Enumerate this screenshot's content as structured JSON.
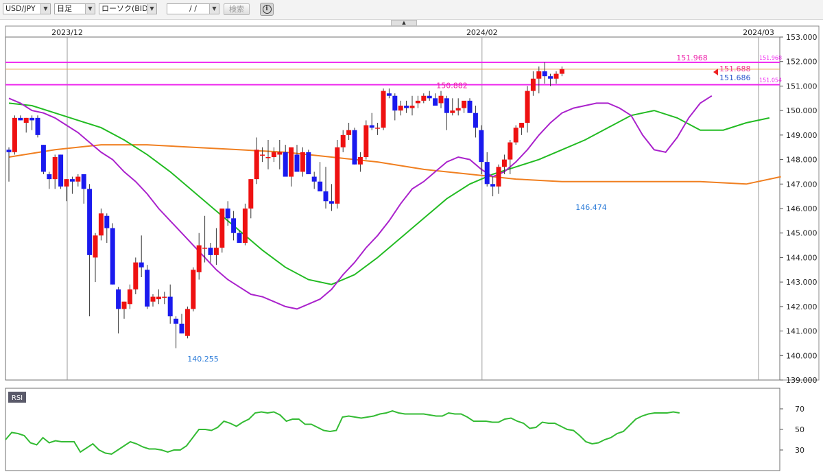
{
  "toolbar": {
    "pair": "USD/JPY",
    "timeframe": "日足",
    "chart_type": "ローソク(BID)",
    "date": "/ /",
    "search_label": "検索",
    "dropdown_glyph": "▼",
    "info_glyph": "i",
    "collapse_glyph": "▲"
  },
  "colors": {
    "bull": "#ee1111",
    "bear": "#1a1aee",
    "ma_short": "#aa22cc",
    "ma_mid": "#22bb22",
    "ma_long": "#f07f20",
    "hline": "#ee22ee",
    "rsi": "#33bb33"
  },
  "chart_data": {
    "type": "candlestick",
    "x_tick_labels": [
      "2023/12",
      "2024/02",
      "2024/03"
    ],
    "x_tick_index": [
      0,
      72,
      120
    ],
    "y_ticks": [
      "153.000",
      "152.000",
      "151.000",
      "150.000",
      "149.000",
      "148.000",
      "147.000",
      "146.000",
      "145.000",
      "144.000",
      "143.000",
      "142.000",
      "141.000",
      "140.000",
      "139.000"
    ],
    "ylim": [
      139.0,
      153.0
    ],
    "grid": false,
    "candles_ohlc": [
      [
        148.4,
        148.5,
        147.1,
        148.3
      ],
      [
        148.3,
        149.8,
        148.2,
        149.7
      ],
      [
        149.7,
        149.8,
        149.6,
        149.6
      ],
      [
        149.5,
        149.7,
        149.1,
        149.7
      ],
      [
        149.7,
        149.8,
        149.2,
        149.6
      ],
      [
        149.7,
        149.8,
        148.9,
        149.0
      ],
      [
        148.6,
        148.6,
        147.4,
        147.5
      ],
      [
        147.4,
        147.5,
        146.8,
        147.2
      ],
      [
        147.2,
        148.2,
        146.8,
        148.1
      ],
      [
        148.2,
        148.2,
        146.8,
        146.9
      ],
      [
        146.9,
        147.2,
        146.3,
        147.2
      ],
      [
        147.2,
        147.3,
        146.6,
        147.1
      ],
      [
        147.1,
        147.4,
        146.9,
        147.3
      ],
      [
        147.4,
        147.4,
        146.2,
        146.8
      ],
      [
        146.8,
        147.0,
        141.6,
        144.1
      ],
      [
        144.0,
        145.0,
        143.0,
        144.9
      ],
      [
        144.9,
        146.0,
        144.7,
        145.8
      ],
      [
        145.7,
        145.8,
        144.6,
        145.2
      ],
      [
        145.2,
        145.4,
        142.9,
        142.9
      ],
      [
        142.7,
        142.8,
        140.9,
        141.9
      ],
      [
        141.9,
        142.2,
        141.5,
        142.2
      ],
      [
        142.1,
        142.9,
        141.9,
        142.7
      ],
      [
        142.7,
        144.0,
        142.5,
        143.8
      ],
      [
        143.8,
        144.9,
        143.2,
        143.6
      ],
      [
        143.5,
        143.7,
        141.9,
        142.0
      ],
      [
        142.2,
        142.5,
        142.0,
        142.4
      ],
      [
        142.3,
        142.7,
        142.1,
        142.4
      ],
      [
        142.4,
        142.6,
        142.1,
        142.4
      ],
      [
        142.4,
        142.9,
        141.3,
        141.6
      ],
      [
        141.5,
        141.6,
        140.3,
        141.3
      ],
      [
        141.3,
        141.7,
        140.9,
        140.9
      ],
      [
        140.8,
        142.0,
        140.7,
        141.9
      ],
      [
        141.9,
        143.6,
        141.8,
        143.5
      ],
      [
        143.4,
        145.0,
        143.1,
        144.5
      ],
      [
        144.4,
        145.7,
        143.8,
        144.4
      ],
      [
        144.4,
        144.6,
        143.8,
        144.1
      ],
      [
        144.1,
        145.2,
        143.7,
        144.4
      ],
      [
        144.4,
        146.0,
        144.2,
        146.0
      ],
      [
        146.0,
        146.3,
        145.3,
        145.6
      ],
      [
        145.6,
        145.9,
        144.7,
        145.0
      ],
      [
        145.0,
        145.1,
        144.6,
        144.6
      ],
      [
        144.6,
        146.2,
        144.5,
        146.0
      ],
      [
        146.0,
        147.2,
        145.6,
        147.2
      ],
      [
        147.2,
        148.9,
        147.0,
        148.4
      ],
      [
        148.2,
        148.5,
        147.9,
        148.2
      ],
      [
        148.1,
        148.8,
        147.6,
        148.1
      ],
      [
        148.1,
        148.5,
        147.9,
        148.3
      ],
      [
        148.2,
        148.8,
        147.6,
        148.3
      ],
      [
        148.3,
        148.6,
        147.4,
        147.3
      ],
      [
        147.3,
        148.4,
        146.9,
        148.5
      ],
      [
        148.2,
        148.6,
        147.7,
        147.5
      ],
      [
        147.5,
        148.5,
        147.3,
        148.3
      ],
      [
        148.3,
        148.4,
        147.5,
        147.4
      ],
      [
        147.3,
        147.5,
        146.8,
        147.1
      ],
      [
        147.1,
        147.9,
        146.9,
        146.7
      ],
      [
        146.7,
        147.7,
        146.0,
        146.3
      ],
      [
        146.3,
        147.0,
        145.9,
        146.2
      ],
      [
        146.2,
        148.8,
        146.0,
        148.5
      ],
      [
        148.5,
        149.2,
        148.3,
        149.0
      ],
      [
        149.0,
        149.5,
        148.8,
        149.2
      ],
      [
        149.2,
        149.3,
        147.8,
        147.8
      ],
      [
        147.8,
        148.3,
        147.5,
        148.1
      ],
      [
        148.1,
        149.6,
        148.0,
        149.4
      ],
      [
        149.4,
        149.9,
        149.2,
        149.3
      ],
      [
        149.3,
        149.5,
        149.0,
        149.3
      ],
      [
        149.3,
        150.9,
        149.2,
        150.8
      ],
      [
        150.7,
        150.9,
        150.5,
        150.6
      ],
      [
        150.6,
        150.7,
        149.6,
        150.0
      ],
      [
        150.0,
        150.4,
        149.8,
        150.2
      ],
      [
        150.2,
        150.4,
        149.9,
        150.1
      ],
      [
        150.1,
        150.6,
        149.8,
        150.2
      ],
      [
        150.3,
        150.6,
        150.1,
        150.4
      ],
      [
        150.4,
        150.7,
        150.3,
        150.6
      ],
      [
        150.6,
        150.8,
        150.4,
        150.5
      ],
      [
        150.5,
        150.7,
        150.2,
        150.2
      ],
      [
        150.3,
        150.8,
        150.1,
        150.6
      ],
      [
        150.5,
        150.6,
        149.2,
        149.9
      ],
      [
        149.9,
        150.5,
        149.8,
        150.0
      ],
      [
        150.0,
        150.5,
        149.8,
        150.1
      ],
      [
        150.1,
        150.3,
        149.9,
        150.4
      ],
      [
        150.4,
        150.5,
        149.9,
        149.9
      ],
      [
        149.9,
        150.2,
        148.9,
        149.3
      ],
      [
        149.2,
        149.4,
        147.4,
        147.9
      ],
      [
        147.9,
        148.3,
        146.9,
        147.0
      ],
      [
        147.0,
        147.3,
        146.5,
        146.9
      ],
      [
        146.9,
        147.8,
        146.6,
        147.7
      ],
      [
        147.7,
        148.2,
        147.4,
        148.0
      ],
      [
        148.0,
        148.8,
        147.4,
        148.7
      ],
      [
        148.7,
        149.4,
        148.6,
        149.3
      ],
      [
        149.3,
        149.5,
        149.0,
        149.5
      ],
      [
        149.5,
        151.0,
        149.1,
        150.8
      ],
      [
        150.8,
        151.6,
        150.6,
        151.3
      ],
      [
        151.3,
        151.8,
        150.7,
        151.6
      ],
      [
        151.6,
        151.97,
        151.1,
        151.4
      ],
      [
        151.4,
        151.5,
        151.0,
        151.3
      ],
      [
        151.3,
        151.6,
        151.1,
        151.5
      ],
      [
        151.5,
        151.8,
        151.4,
        151.69
      ]
    ],
    "ma_short_values": [
      150.5,
      150.3,
      150.0,
      149.9,
      149.7,
      149.4,
      149.1,
      148.7,
      148.3,
      148.0,
      147.5,
      147.1,
      146.6,
      146.0,
      145.5,
      145.0,
      144.5,
      144.0,
      143.5,
      143.1,
      142.8,
      142.5,
      142.4,
      142.2,
      142.0,
      141.9,
      142.1,
      142.3,
      142.7,
      143.3,
      143.8,
      144.4,
      144.9,
      145.5,
      146.2,
      146.8,
      147.1,
      147.5,
      147.9,
      148.1,
      148.0,
      147.6,
      147.3,
      147.5,
      147.9,
      148.4,
      149.0,
      149.5,
      149.9,
      150.1,
      150.2,
      150.3,
      150.3,
      150.1,
      149.8,
      149.0,
      148.4,
      148.3,
      148.9,
      149.7,
      150.3,
      150.6
    ],
    "ma_short_index": [
      0,
      2,
      4,
      6,
      8,
      10,
      12,
      14,
      16,
      18,
      20,
      22,
      24,
      26,
      28,
      30,
      32,
      34,
      36,
      38,
      40,
      42,
      44,
      46,
      48,
      50,
      52,
      54,
      56,
      58,
      60,
      62,
      64,
      66,
      68,
      70,
      72,
      74,
      76,
      78,
      80,
      82,
      84,
      86,
      88,
      90,
      92,
      94,
      96,
      98,
      100,
      102,
      104,
      106,
      108,
      110,
      112,
      114,
      116,
      118,
      120,
      122
    ],
    "ma_mid_values": [
      150.3,
      150.2,
      149.9,
      149.6,
      149.3,
      148.8,
      148.2,
      147.5,
      146.7,
      145.9,
      145.1,
      144.3,
      143.6,
      143.1,
      142.9,
      143.3,
      144.0,
      144.8,
      145.6,
      146.4,
      147.0,
      147.4,
      147.7,
      148.0,
      148.4,
      148.8,
      149.3,
      149.8,
      150.0,
      149.7,
      149.2,
      149.2,
      149.5,
      149.7
    ],
    "ma_mid_index": [
      0,
      4,
      8,
      12,
      16,
      20,
      24,
      28,
      32,
      36,
      40,
      44,
      48,
      52,
      56,
      60,
      64,
      68,
      72,
      76,
      80,
      84,
      88,
      92,
      96,
      100,
      104,
      108,
      112,
      116,
      120,
      124,
      128,
      132
    ],
    "ma_long_values": [
      148.1,
      148.4,
      148.6,
      148.6,
      148.5,
      148.4,
      148.3,
      148.1,
      147.9,
      147.6,
      147.4,
      147.2,
      147.1,
      147.1,
      147.1,
      147.1,
      147.0,
      147.3
    ],
    "ma_long_index": [
      0,
      8,
      16,
      24,
      32,
      40,
      48,
      56,
      64,
      72,
      80,
      88,
      96,
      104,
      112,
      120,
      128,
      134
    ],
    "horizontal_lines": [
      151.968,
      151.054
    ],
    "orange_level": 151.688,
    "annotations": {
      "high_label": "151.968",
      "low_label_1": "140.255",
      "low_label_2": "146.474",
      "mid_label": "150.882",
      "current_bid": "151.688",
      "current_alt": "151.686",
      "line_label_top": "151.968",
      "line_label_bottom": "151.054"
    },
    "rsi": {
      "label": "RSI",
      "ticks": [
        "70",
        "50",
        "30"
      ],
      "ylim": [
        10,
        90
      ],
      "values": [
        40,
        47,
        46,
        44,
        37,
        35,
        42,
        37,
        39,
        38,
        38,
        38,
        28,
        32,
        36,
        30,
        27,
        26,
        30,
        34,
        38,
        36,
        33,
        31,
        31,
        30,
        28,
        30,
        30,
        34,
        42,
        50,
        50,
        49,
        52,
        58,
        56,
        53,
        57,
        60,
        66,
        67,
        66,
        67,
        64,
        58,
        60,
        60,
        55,
        55,
        52,
        49,
        48,
        49,
        62,
        63,
        62,
        61,
        62,
        63,
        65,
        66,
        68,
        66,
        65,
        65,
        65,
        65,
        64,
        63,
        63,
        66,
        65,
        65,
        62,
        58,
        58,
        58,
        57,
        57,
        60,
        61,
        58,
        56,
        51,
        52,
        57,
        56,
        56,
        53,
        50,
        49,
        44,
        38,
        36,
        37,
        40,
        42,
        46,
        48,
        54,
        60,
        63,
        65,
        66,
        66,
        66,
        67,
        66
      ],
      "index_step": 1.13
    }
  }
}
